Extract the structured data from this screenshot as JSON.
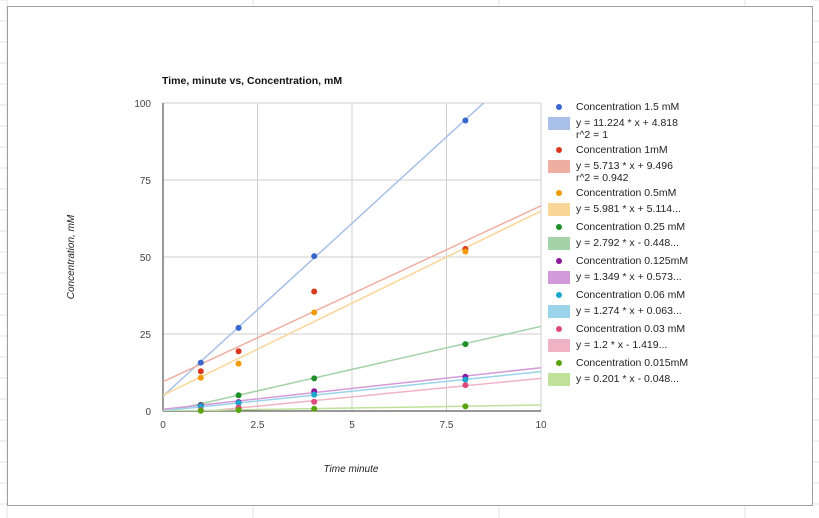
{
  "chart_data": {
    "type": "scatter",
    "title": "Time, minute vs, Concentration, mM",
    "xlabel": "Time minute",
    "ylabel": "Concentration, mM",
    "xlim": [
      0,
      10
    ],
    "ylim": [
      0,
      100
    ],
    "xticks": [
      "0",
      "2.5",
      "5",
      "7.5",
      "10"
    ],
    "yticks": [
      "0",
      "25",
      "50",
      "75",
      "100"
    ],
    "x_values": [
      0,
      2.5,
      5,
      7.5,
      10
    ],
    "y_values": [
      0,
      25,
      50,
      75,
      100
    ],
    "grid": true,
    "legend_position": "right",
    "series": [
      {
        "name": "Concentration 1.5 mM",
        "color": "#3a66cf",
        "trend_color": "#a8bfe8",
        "x": [
          1,
          2,
          4,
          8
        ],
        "y": [
          15.7,
          27.0,
          50.3,
          94.3
        ],
        "trendline": {
          "slope": 11.224,
          "intercept": 4.818,
          "label": "y = 11.224 * x + 4.818",
          "r2": "r^2 = 1"
        }
      },
      {
        "name": "Concentration 1mM",
        "color": "#d8391e",
        "trend_color": "#eeafa2",
        "x": [
          1,
          2,
          4,
          8
        ],
        "y": [
          12.9,
          19.4,
          38.8,
          52.6
        ],
        "trendline": {
          "slope": 5.713,
          "intercept": 9.496,
          "label": "y = 5.713 * x + 9.496",
          "r2": "r^2 = 0.942"
        }
      },
      {
        "name": "Concentration 0.5mM",
        "color": "#f19b00",
        "trend_color": "#fbd699",
        "x": [
          1,
          2,
          4,
          8
        ],
        "y": [
          10.8,
          15.4,
          32.0,
          51.8
        ],
        "trendline": {
          "slope": 5.981,
          "intercept": 5.114,
          "label": "y = 5.981 * x + 5.114...",
          "r2": ""
        }
      },
      {
        "name": "Concentration 0.25 mM",
        "color": "#1f8f2a",
        "trend_color": "#a3d3a6",
        "x": [
          1,
          2,
          4,
          8
        ],
        "y": [
          2.0,
          5.1,
          10.6,
          21.7
        ],
        "trendline": {
          "slope": 2.792,
          "intercept": -0.448,
          "label": "y = 2.792 * x - 0.448...",
          "r2": ""
        }
      },
      {
        "name": "Concentration 0.125mM",
        "color": "#8b1a9a",
        "trend_color": "#d29ad8",
        "x": [
          1,
          2,
          4,
          8
        ],
        "y": [
          1.8,
          2.9,
          6.4,
          11.1
        ],
        "trendline": {
          "slope": 1.349,
          "intercept": 0.573,
          "label": "y = 1.349 * x + 0.573...",
          "r2": ""
        }
      },
      {
        "name": "Concentration 0.06 mM",
        "color": "#1ca7cf",
        "trend_color": "#99d4ea",
        "x": [
          1,
          2,
          4,
          8
        ],
        "y": [
          1.5,
          2.6,
          5.3,
          10.2
        ],
        "trendline": {
          "slope": 1.274,
          "intercept": 0.063,
          "label": "y = 1.274 * x + 0.063...",
          "r2": ""
        }
      },
      {
        "name": "Concentration 0.03 mM",
        "color": "#de4a7b",
        "trend_color": "#f0b3c6",
        "x": [
          1,
          2,
          4,
          8
        ],
        "y": [
          0.3,
          1.1,
          3.0,
          8.4
        ],
        "trendline": {
          "slope": 1.2,
          "intercept": -1.419,
          "label": "y = 1.2 * x - 1.419...",
          "r2": ""
        }
      },
      {
        "name": "Concentration 0.015mM",
        "color": "#5aa40d",
        "trend_color": "#bfe19a",
        "x": [
          1,
          2,
          4,
          8
        ],
        "y": [
          0.1,
          0.3,
          0.7,
          1.5
        ],
        "trendline": {
          "slope": 0.201,
          "intercept": -0.048,
          "label": "y = 0.201 * x - 0.048...",
          "r2": ""
        }
      }
    ]
  }
}
